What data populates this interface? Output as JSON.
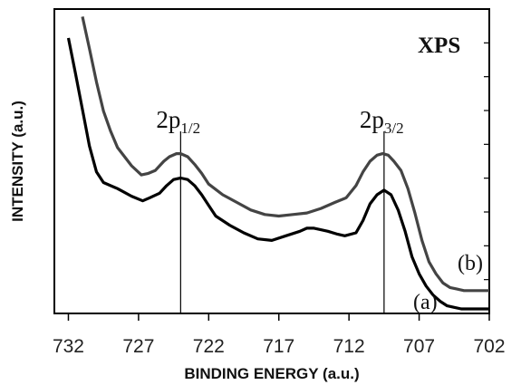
{
  "chart_data": {
    "type": "line",
    "title": "XPS",
    "xlabel": "BINDING ENERGY (a.u.)",
    "ylabel": "INTENSITY (a.u.)",
    "xlim": [
      733,
      702
    ],
    "ylim": [
      0,
      1
    ],
    "x_ticks": [
      732,
      727,
      722,
      717,
      712,
      707,
      702
    ],
    "x_tick_labels": [
      "732",
      "727",
      "722",
      "717",
      "712",
      "707",
      "702"
    ],
    "y_tick_labels": [],
    "peaks": [
      {
        "x": 724.0,
        "label_main": "2p",
        "label_sub": "1/2"
      },
      {
        "x": 709.5,
        "label_main": "2p",
        "label_sub": "3/2"
      }
    ],
    "series": [
      {
        "name": "(a)",
        "color": "#000000",
        "x": [
          732.0,
          731.5,
          731.0,
          730.5,
          730.0,
          729.5,
          728.5,
          727.5,
          726.7,
          726.2,
          725.5,
          725.0,
          724.5,
          724.0,
          723.5,
          723.0,
          722.5,
          722.0,
          721.5,
          720.5,
          719.5,
          718.5,
          717.5,
          716.5,
          715.5,
          715.0,
          714.5,
          713.5,
          712.8,
          712.3,
          711.5,
          711.0,
          710.5,
          710.0,
          709.5,
          709.0,
          708.5,
          708.0,
          707.5,
          707.0,
          706.5,
          706.0,
          705.5,
          705.0,
          704.5,
          704.0,
          703.5,
          703.0,
          702.0
        ],
        "y": [
          0.905,
          0.79,
          0.67,
          0.55,
          0.465,
          0.43,
          0.41,
          0.385,
          0.37,
          0.38,
          0.395,
          0.42,
          0.44,
          0.445,
          0.44,
          0.42,
          0.39,
          0.355,
          0.32,
          0.29,
          0.265,
          0.245,
          0.24,
          0.255,
          0.27,
          0.28,
          0.28,
          0.27,
          0.26,
          0.255,
          0.265,
          0.305,
          0.36,
          0.39,
          0.405,
          0.39,
          0.34,
          0.27,
          0.185,
          0.13,
          0.09,
          0.06,
          0.04,
          0.025,
          0.02,
          0.015,
          0.015,
          0.015,
          0.015
        ]
      },
      {
        "name": "(b)",
        "color": "#444444",
        "x": [
          731.0,
          730.5,
          730.0,
          729.5,
          729.0,
          728.5,
          727.5,
          726.8,
          726.3,
          725.8,
          725.2,
          724.8,
          724.3,
          724.0,
          723.5,
          723.0,
          722.5,
          722.0,
          721.0,
          720.0,
          719.0,
          718.0,
          717.0,
          716.0,
          715.0,
          714.0,
          713.0,
          712.2,
          711.5,
          711.0,
          710.5,
          710.0,
          709.6,
          709.2,
          708.8,
          708.3,
          707.8,
          707.3,
          706.8,
          706.3,
          705.8,
          705.3,
          704.8,
          704.3,
          703.8,
          703.3,
          702.8,
          702.0
        ],
        "y": [
          0.975,
          0.87,
          0.76,
          0.665,
          0.6,
          0.545,
          0.485,
          0.455,
          0.46,
          0.47,
          0.5,
          0.515,
          0.525,
          0.525,
          0.515,
          0.49,
          0.46,
          0.425,
          0.39,
          0.365,
          0.34,
          0.325,
          0.32,
          0.325,
          0.33,
          0.345,
          0.365,
          0.38,
          0.42,
          0.465,
          0.5,
          0.52,
          0.525,
          0.52,
          0.5,
          0.47,
          0.41,
          0.33,
          0.24,
          0.17,
          0.13,
          0.1,
          0.085,
          0.08,
          0.075,
          0.075,
          0.075,
          0.075
        ]
      }
    ],
    "grid": false
  }
}
